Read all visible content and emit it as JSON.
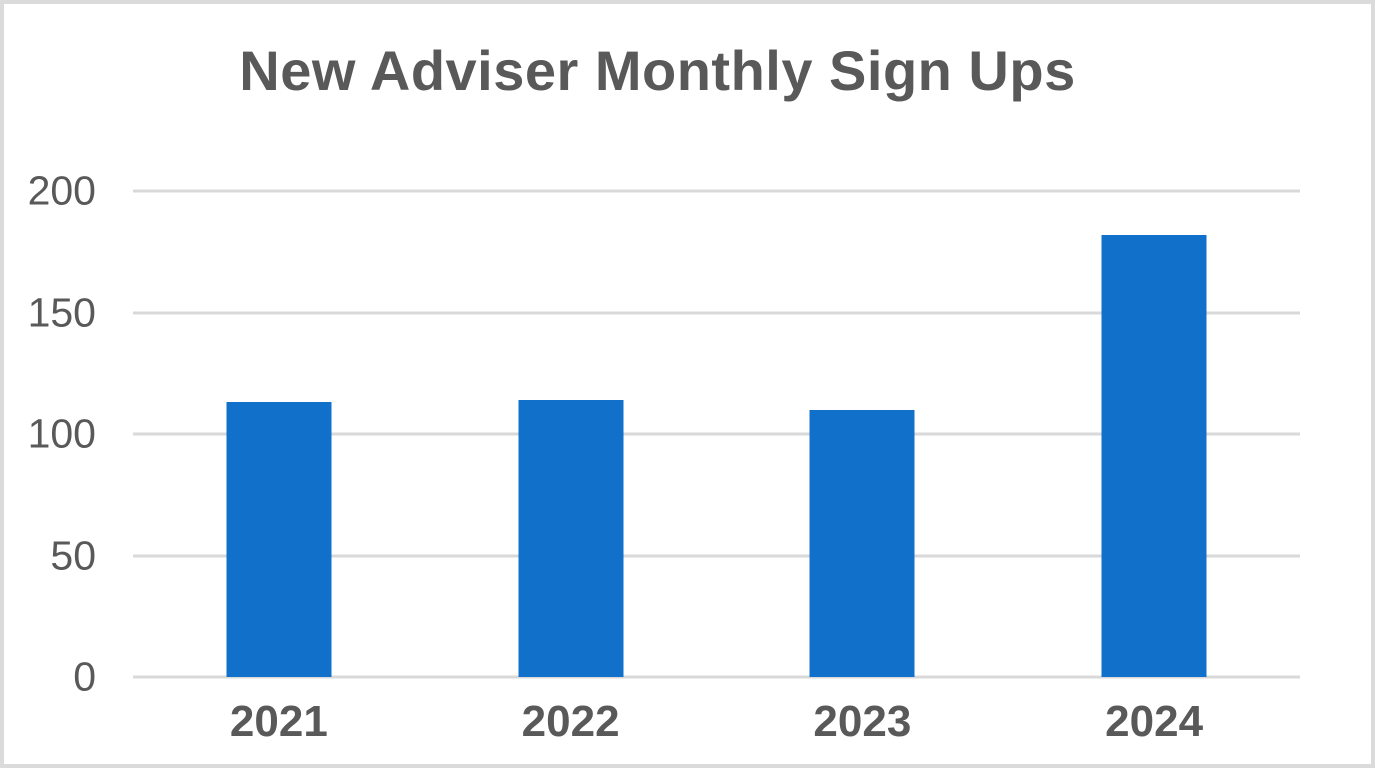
{
  "chart_data": {
    "type": "bar",
    "title": "New Adviser Monthly Sign Ups",
    "categories": [
      "2021",
      "2022",
      "2023",
      "2024"
    ],
    "values": [
      113,
      114,
      110,
      182
    ],
    "xlabel": "",
    "ylabel": "",
    "ylim": [
      0,
      200
    ],
    "yticks": [
      0,
      50,
      100,
      150,
      200
    ],
    "grid": true,
    "legend_position": "none",
    "bar_color": "#1170C9",
    "text_color": "#595959",
    "gridline_color": "#D9D9D9",
    "background_color": "#FFFFFF",
    "frame_border_color": "#DBDBDB"
  }
}
